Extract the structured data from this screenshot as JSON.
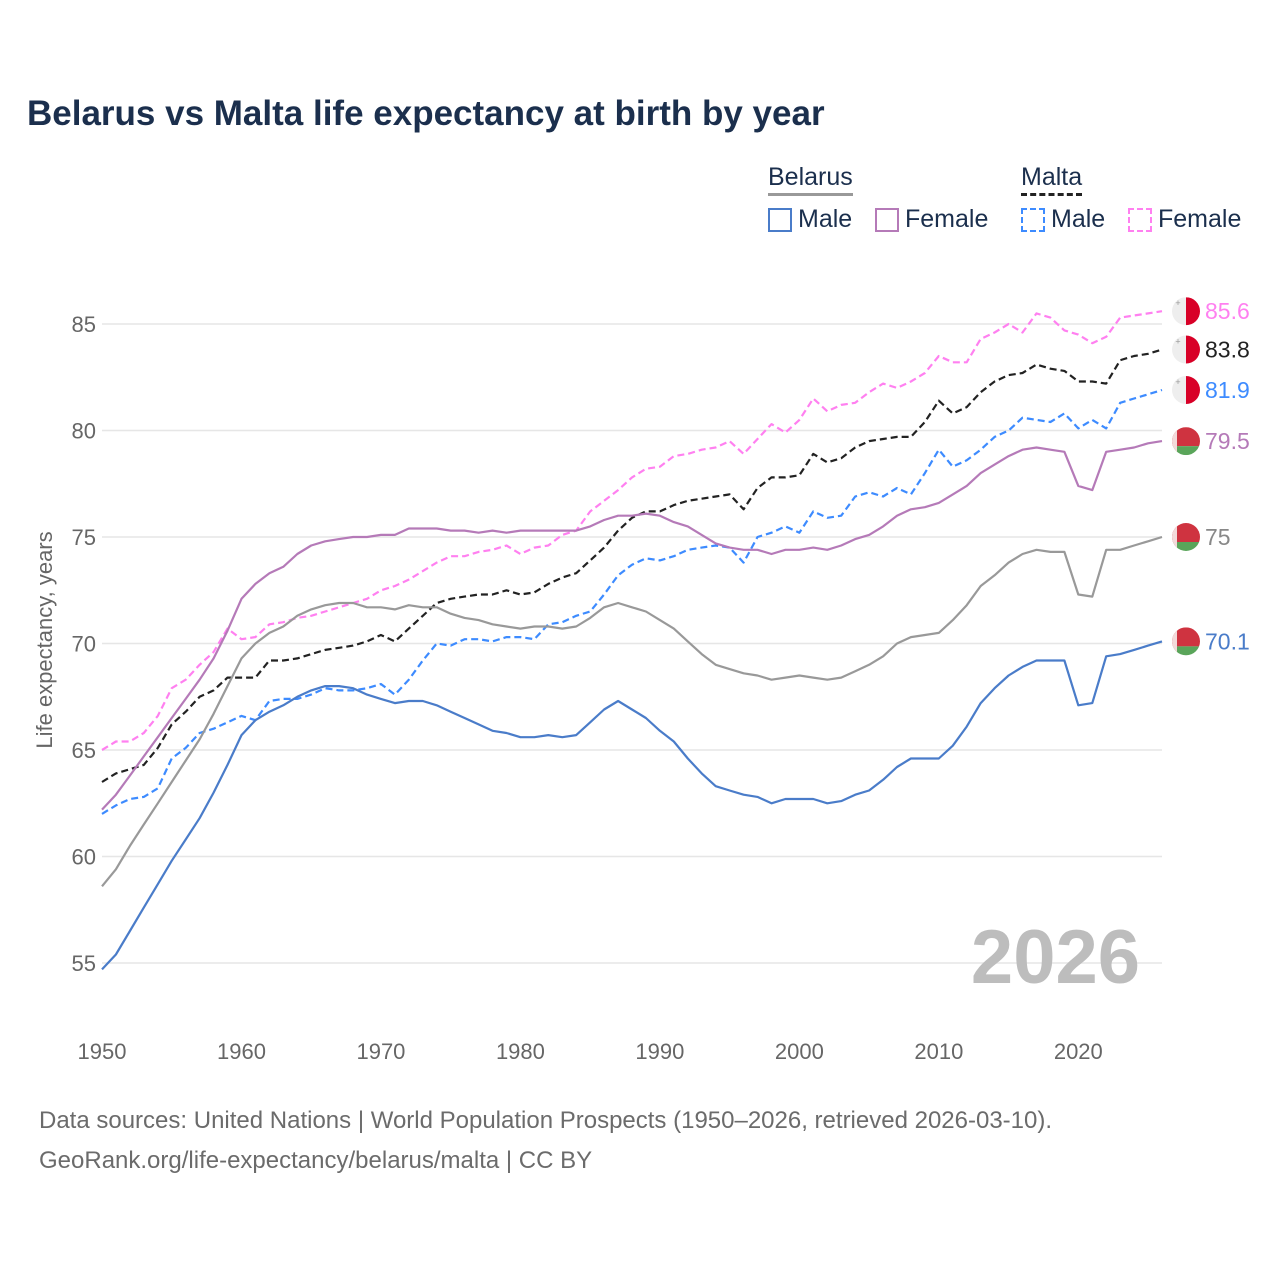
{
  "title": "Belarus vs Malta life expectancy at birth by year",
  "legend": {
    "groups": [
      {
        "name": "Belarus",
        "items": [
          "Male",
          "Female"
        ]
      },
      {
        "name": "Malta",
        "items": [
          "Male",
          "Female"
        ]
      }
    ]
  },
  "watermark_year": "2026",
  "source_line1": "Data sources: United Nations | World Population Prospects (1950–2026, retrieved 2026-03-10).",
  "source_line2": "GeoRank.org/life-expectancy/belarus/malta | CC BY",
  "chart_data": {
    "type": "line",
    "title": "Belarus vs Malta life expectancy at birth by year",
    "xlabel": "",
    "ylabel": "Life expectancy, years",
    "xlim": [
      1950,
      2026
    ],
    "ylim": [
      53,
      87
    ],
    "xticks": [
      1950,
      1960,
      1970,
      1980,
      1990,
      2000,
      2010,
      2020
    ],
    "yticks": [
      55,
      60,
      65,
      70,
      75,
      80,
      85
    ],
    "grid": "horizontal",
    "legend_position": "top-right",
    "x_start": 1950,
    "series": [
      {
        "name": "Malta Female",
        "country": "Malta",
        "sex": "Female",
        "color": "#ff80f0",
        "dashed": true,
        "end_label": "85.6",
        "values": [
          65.0,
          65.4,
          65.4,
          65.8,
          66.6,
          67.9,
          68.3,
          69.0,
          69.6,
          70.7,
          70.2,
          70.3,
          70.9,
          71.0,
          71.2,
          71.3,
          71.5,
          71.7,
          71.9,
          72.1,
          72.5,
          72.7,
          73.0,
          73.4,
          73.8,
          74.1,
          74.1,
          74.3,
          74.4,
          74.6,
          74.2,
          74.5,
          74.6,
          75.1,
          75.3,
          76.2,
          76.7,
          77.2,
          77.8,
          78.2,
          78.3,
          78.8,
          78.9,
          79.1,
          79.2,
          79.5,
          78.9,
          79.6,
          80.3,
          79.9,
          80.5,
          81.5,
          80.9,
          81.2,
          81.3,
          81.8,
          82.2,
          82.0,
          82.3,
          82.7,
          83.5,
          83.2,
          83.2,
          84.3,
          84.6,
          85.0,
          84.6,
          85.5,
          85.3,
          84.7,
          84.5,
          84.1,
          84.4,
          85.3,
          85.4,
          85.5,
          85.6
        ]
      },
      {
        "name": "Malta Total",
        "country": "Malta",
        "sex": "Total",
        "color": "#222222",
        "dashed": true,
        "end_label": "83.8",
        "values": [
          63.5,
          63.9,
          64.1,
          64.3,
          65.1,
          66.2,
          66.8,
          67.5,
          67.8,
          68.4,
          68.4,
          68.4,
          69.2,
          69.2,
          69.3,
          69.5,
          69.7,
          69.8,
          69.9,
          70.1,
          70.4,
          70.1,
          70.7,
          71.3,
          71.9,
          72.1,
          72.2,
          72.3,
          72.3,
          72.5,
          72.3,
          72.4,
          72.8,
          73.1,
          73.3,
          73.9,
          74.5,
          75.3,
          75.9,
          76.2,
          76.2,
          76.5,
          76.7,
          76.8,
          76.9,
          77.0,
          76.3,
          77.3,
          77.8,
          77.8,
          77.9,
          78.9,
          78.5,
          78.7,
          79.2,
          79.5,
          79.6,
          79.7,
          79.7,
          80.4,
          81.4,
          80.8,
          81.1,
          81.8,
          82.3,
          82.6,
          82.7,
          83.1,
          82.9,
          82.8,
          82.3,
          82.3,
          82.2,
          83.3,
          83.5,
          83.6,
          83.8
        ]
      },
      {
        "name": "Malta Male",
        "country": "Malta",
        "sex": "Male",
        "color": "#3d8bff",
        "dashed": true,
        "end_label": "81.9",
        "values": [
          62.0,
          62.4,
          62.7,
          62.8,
          63.2,
          64.6,
          65.1,
          65.8,
          66.0,
          66.3,
          66.6,
          66.4,
          67.3,
          67.4,
          67.4,
          67.6,
          67.9,
          67.8,
          67.8,
          67.9,
          68.1,
          67.6,
          68.3,
          69.2,
          70.0,
          69.9,
          70.2,
          70.2,
          70.1,
          70.3,
          70.3,
          70.2,
          70.9,
          71.0,
          71.3,
          71.5,
          72.3,
          73.2,
          73.7,
          74.0,
          73.9,
          74.1,
          74.4,
          74.5,
          74.6,
          74.5,
          73.8,
          75.0,
          75.2,
          75.5,
          75.2,
          76.2,
          75.9,
          76.0,
          76.9,
          77.1,
          76.9,
          77.3,
          77.0,
          78.0,
          79.1,
          78.3,
          78.6,
          79.1,
          79.7,
          80.0,
          80.6,
          80.5,
          80.4,
          80.8,
          80.1,
          80.5,
          80.1,
          81.3,
          81.5,
          81.7,
          81.9
        ]
      },
      {
        "name": "Belarus Female",
        "country": "Belarus",
        "sex": "Female",
        "color": "#b57ab8",
        "dashed": false,
        "end_label": "79.5",
        "values": [
          62.2,
          62.9,
          63.8,
          64.7,
          65.6,
          66.5,
          67.4,
          68.3,
          69.3,
          70.6,
          72.1,
          72.8,
          73.3,
          73.6,
          74.2,
          74.6,
          74.8,
          74.9,
          75.0,
          75.0,
          75.1,
          75.1,
          75.4,
          75.4,
          75.4,
          75.3,
          75.3,
          75.2,
          75.3,
          75.2,
          75.3,
          75.3,
          75.3,
          75.3,
          75.3,
          75.5,
          75.8,
          76.0,
          76.0,
          76.1,
          76.0,
          75.7,
          75.5,
          75.1,
          74.7,
          74.5,
          74.4,
          74.4,
          74.2,
          74.4,
          74.4,
          74.5,
          74.4,
          74.6,
          74.9,
          75.1,
          75.5,
          76.0,
          76.3,
          76.4,
          76.6,
          77.0,
          77.4,
          78.0,
          78.4,
          78.8,
          79.1,
          79.2,
          79.1,
          79.0,
          77.4,
          77.2,
          79.0,
          79.1,
          79.2,
          79.4,
          79.5
        ]
      },
      {
        "name": "Belarus Total",
        "country": "Belarus",
        "sex": "Total",
        "color": "#999999",
        "dashed": false,
        "end_label": "75",
        "values": [
          58.6,
          59.4,
          60.5,
          61.5,
          62.5,
          63.5,
          64.5,
          65.5,
          66.7,
          68.0,
          69.3,
          70.0,
          70.5,
          70.8,
          71.3,
          71.6,
          71.8,
          71.9,
          71.9,
          71.7,
          71.7,
          71.6,
          71.8,
          71.7,
          71.7,
          71.4,
          71.2,
          71.1,
          70.9,
          70.8,
          70.7,
          70.8,
          70.8,
          70.7,
          70.8,
          71.2,
          71.7,
          71.9,
          71.7,
          71.5,
          71.1,
          70.7,
          70.1,
          69.5,
          69.0,
          68.8,
          68.6,
          68.5,
          68.3,
          68.4,
          68.5,
          68.4,
          68.3,
          68.4,
          68.7,
          69.0,
          69.4,
          70.0,
          70.3,
          70.4,
          70.5,
          71.1,
          71.8,
          72.7,
          73.2,
          73.8,
          74.2,
          74.4,
          74.3,
          74.3,
          72.3,
          72.2,
          74.4,
          74.4,
          74.6,
          74.8,
          75.0
        ]
      },
      {
        "name": "Belarus Male",
        "country": "Belarus",
        "sex": "Male",
        "color": "#4a7cc9",
        "dashed": false,
        "end_label": "70.1",
        "values": [
          54.7,
          55.4,
          56.5,
          57.6,
          58.7,
          59.8,
          60.8,
          61.8,
          63.0,
          64.3,
          65.7,
          66.4,
          66.8,
          67.1,
          67.5,
          67.8,
          68.0,
          68.0,
          67.9,
          67.6,
          67.4,
          67.2,
          67.3,
          67.3,
          67.1,
          66.8,
          66.5,
          66.2,
          65.9,
          65.8,
          65.6,
          65.6,
          65.7,
          65.6,
          65.7,
          66.3,
          66.9,
          67.3,
          66.9,
          66.5,
          65.9,
          65.4,
          64.6,
          63.9,
          63.3,
          63.1,
          62.9,
          62.8,
          62.5,
          62.7,
          62.7,
          62.7,
          62.5,
          62.6,
          62.9,
          63.1,
          63.6,
          64.2,
          64.6,
          64.6,
          64.6,
          65.2,
          66.1,
          67.2,
          67.9,
          68.5,
          68.9,
          69.2,
          69.2,
          69.2,
          67.1,
          67.2,
          69.4,
          69.5,
          69.7,
          69.9,
          70.1
        ]
      }
    ]
  }
}
